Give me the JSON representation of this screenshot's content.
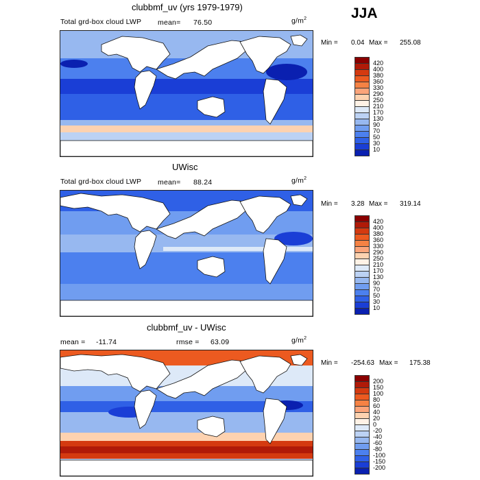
{
  "season": "JJA",
  "units": "g/m",
  "units_sup": "2",
  "chart_data": [
    {
      "type": "heatmap",
      "title": "clubbmf_uv (yrs 1979-1979)",
      "subtitle": "Total grd-box cloud LWP",
      "mean_label": "mean=",
      "mean_value": "76.50",
      "min_label": "Min =",
      "min_value": "0.04",
      "max_label": "Max =",
      "max_value": "255.08",
      "colorbar_labels": [
        "420",
        "400",
        "380",
        "360",
        "330",
        "290",
        "250",
        "210",
        "170",
        "130",
        "90",
        "70",
        "50",
        "30",
        "10"
      ],
      "colors": [
        "#8a0000",
        "#b01a08",
        "#d43a10",
        "#ec5a20",
        "#f58244",
        "#fba47a",
        "#fdd2b0",
        "#fff2e6",
        "#dde9f8",
        "#bcd2f4",
        "#97b8f0",
        "#709df0",
        "#4c80ee",
        "#2f60e6",
        "#1a3ed6",
        "#0a20b0"
      ]
    },
    {
      "type": "heatmap",
      "title": "UWisc",
      "subtitle": "Total grd-box cloud LWP",
      "mean_label": "mean=",
      "mean_value": "88.24",
      "min_label": "Min =",
      "min_value": "3.28",
      "max_label": "Max =",
      "max_value": "319.14",
      "colorbar_labels": [
        "420",
        "400",
        "380",
        "360",
        "330",
        "290",
        "250",
        "210",
        "170",
        "130",
        "90",
        "70",
        "50",
        "30",
        "10"
      ],
      "colors": [
        "#8a0000",
        "#b01a08",
        "#d43a10",
        "#ec5a20",
        "#f58244",
        "#fba47a",
        "#fdd2b0",
        "#fff2e6",
        "#dde9f8",
        "#bcd2f4",
        "#97b8f0",
        "#709df0",
        "#4c80ee",
        "#2f60e6",
        "#1a3ed6",
        "#0a20b0"
      ]
    },
    {
      "type": "heatmap",
      "title": "clubbmf_uv - UWisc",
      "mean_label": "mean =",
      "mean_value": "-11.74",
      "rmse_label": "rmse =",
      "rmse_value": "63.09",
      "min_label": "Min =",
      "min_value": "-254.63",
      "max_label": "Max =",
      "max_value": "175.38",
      "colorbar_labels": [
        "200",
        "150",
        "100",
        "80",
        "60",
        "40",
        "20",
        "0",
        "-20",
        "-40",
        "-60",
        "-80",
        "-100",
        "-150",
        "-200"
      ],
      "colors": [
        "#8a0000",
        "#b01a08",
        "#d43a10",
        "#ec5a20",
        "#f58244",
        "#fba47a",
        "#fdd2b0",
        "#fff2e6",
        "#dde9f8",
        "#bcd2f4",
        "#97b8f0",
        "#709df0",
        "#4c80ee",
        "#2f60e6",
        "#1a3ed6",
        "#0a20b0"
      ]
    }
  ]
}
